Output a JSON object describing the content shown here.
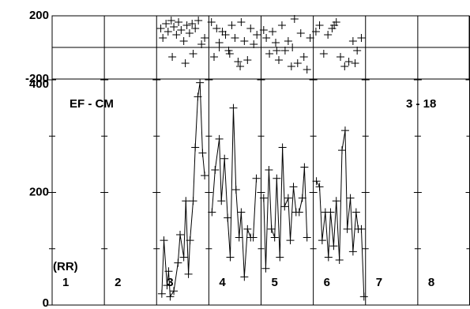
{
  "chart_data": [
    {
      "type": "scatter",
      "x": [
        2.08,
        2.12,
        2.18,
        2.22,
        2.28,
        2.33,
        2.38,
        2.42,
        2.47,
        2.52,
        2.58,
        2.63,
        2.68,
        2.74,
        2.8,
        2.86,
        2.92,
        2.55,
        2.3,
        2.7,
        3.05,
        3.1,
        3.15,
        3.2,
        3.26,
        3.32,
        3.38,
        3.44,
        3.5,
        3.56,
        3.62,
        3.68,
        3.74,
        3.8,
        3.86,
        3.92,
        3.4,
        3.6,
        3.2,
        4.05,
        4.1,
        4.16,
        4.22,
        4.28,
        4.34,
        4.4,
        4.46,
        4.52,
        4.58,
        4.64,
        4.7,
        4.76,
        4.82,
        4.88,
        4.94,
        4.3,
        4.6,
        5.05,
        5.12,
        5.2,
        5.28,
        5.36,
        5.44,
        5.52,
        5.6,
        5.68,
        5.76,
        5.84,
        5.92,
        5.4,
        5.8
      ],
      "y": [
        120,
        60,
        150,
        100,
        170,
        130,
        80,
        160,
        110,
        40,
        140,
        90,
        150,
        120,
        170,
        20,
        60,
        -100,
        -60,
        -40,
        160,
        -60,
        120,
        30,
        100,
        80,
        -20,
        140,
        60,
        -90,
        160,
        40,
        -80,
        120,
        20,
        80,
        -40,
        -120,
        0,
        110,
        60,
        -40,
        100,
        30,
        -80,
        140,
        -20,
        40,
        -120,
        180,
        -100,
        90,
        -60,
        -140,
        60,
        -20,
        0,
        100,
        140,
        -40,
        80,
        120,
        160,
        -60,
        -120,
        -90,
        40,
        -20,
        60,
        140,
        -100
      ],
      "color": "#000000",
      "xlim": [
        0,
        8
      ],
      "ylim": [
        -200,
        200
      ],
      "yticks": [
        -200,
        200
      ]
    },
    {
      "type": "line",
      "title": "EF - CM",
      "subtitle": "3 - 18",
      "annotation": "(RR)",
      "categories": [
        "1",
        "2",
        "3",
        "4",
        "5",
        "6",
        "7",
        "8"
      ],
      "color": "#000000",
      "xlim": [
        0,
        8
      ],
      "xticks": [
        0,
        1,
        2,
        3,
        4,
        5,
        6,
        7,
        8
      ],
      "ylim": [
        0,
        400
      ],
      "yticks": [
        0,
        200,
        400
      ],
      "yminorticks": [
        100,
        300
      ],
      "series": [
        {
          "x": [
            2.1,
            2.14,
            2.2,
            2.23,
            2.26,
            2.33,
            2.41,
            2.45,
            2.52,
            2.56,
            2.61,
            2.64,
            2.7,
            2.74,
            2.79,
            2.83,
            2.88,
            2.92
          ],
          "values": [
            20,
            115,
            35,
            60,
            15,
            25,
            75,
            125,
            85,
            185,
            55,
            115,
            185,
            280,
            370,
            395,
            270,
            230
          ]
        },
        {
          "x": [
            3.06,
            3.12,
            3.2,
            3.24,
            3.3,
            3.36,
            3.41,
            3.47,
            3.52,
            3.58,
            3.62,
            3.68,
            3.74,
            3.8,
            3.85,
            3.91
          ],
          "values": [
            165,
            240,
            295,
            185,
            260,
            155,
            85,
            350,
            205,
            120,
            165,
            50,
            135,
            120,
            120,
            225
          ]
        },
        {
          "x": [
            4.05,
            4.09,
            4.15,
            4.2,
            4.26,
            4.3,
            4.36,
            4.41,
            4.45,
            4.52,
            4.56,
            4.62,
            4.67,
            4.73,
            4.79,
            4.83,
            4.88
          ],
          "values": [
            190,
            65,
            240,
            135,
            120,
            225,
            85,
            280,
            175,
            190,
            115,
            210,
            165,
            165,
            190,
            245,
            120
          ]
        },
        {
          "x": [
            5.06,
            5.12,
            5.17,
            5.23,
            5.29,
            5.33,
            5.39,
            5.44,
            5.5,
            5.55,
            5.61,
            5.65,
            5.71,
            5.76,
            5.82,
            5.86,
            5.92,
            5.97
          ],
          "values": [
            220,
            210,
            115,
            165,
            85,
            165,
            105,
            185,
            80,
            275,
            310,
            135,
            190,
            95,
            165,
            135,
            135,
            15
          ]
        }
      ]
    }
  ]
}
